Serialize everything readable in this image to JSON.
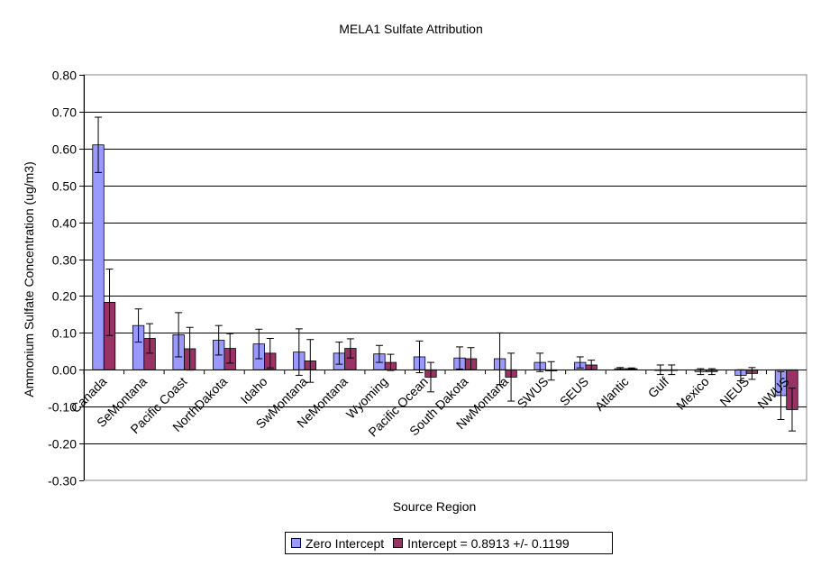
{
  "chart_data": {
    "type": "bar",
    "title": "MELA1 Sulfate Attribution",
    "xlabel": "Source Region",
    "ylabel": "Ammonium Sulfate Concentration (ug/m3)",
    "ylim": [
      -0.3,
      0.8
    ],
    "ytick_step": 0.1,
    "yticks": [
      "0.80",
      "0.70",
      "0.60",
      "0.50",
      "0.40",
      "0.30",
      "0.20",
      "0.10",
      "0.00",
      "-0.10",
      "-0.20",
      "-0.30"
    ],
    "grid": true,
    "legend_position": "bottom",
    "categories": [
      "Canada",
      "SeMontana",
      "Pacific Coast",
      "NorthDakota",
      "Idaho",
      "SwMontana",
      "NeMontana",
      "Wyoming",
      "Pacific Ocean",
      "South Dakota",
      "NwMontana",
      "SWUS",
      "SEUS",
      "Atlantic",
      "Gulf",
      "Mexico",
      "NEUS",
      "NWUS"
    ],
    "series": [
      {
        "name": "Zero Intercept",
        "color": "#9999ff",
        "values": [
          0.61,
          0.12,
          0.095,
          0.08,
          0.07,
          0.048,
          0.045,
          0.043,
          0.035,
          0.032,
          0.03,
          0.02,
          0.02,
          0.003,
          0.0,
          -0.005,
          -0.015,
          -0.07
        ],
        "errors": [
          0.075,
          0.045,
          0.06,
          0.04,
          0.04,
          0.063,
          0.03,
          0.023,
          0.043,
          0.03,
          0.07,
          0.025,
          0.015,
          0.003,
          0.013,
          0.008,
          0.015,
          0.065
        ]
      },
      {
        "name": "Intercept = 0.8913 +/- 0.1199",
        "color": "#993366",
        "values": [
          0.183,
          0.085,
          0.057,
          0.058,
          0.045,
          0.024,
          0.058,
          0.02,
          -0.02,
          0.03,
          -0.02,
          -0.003,
          0.013,
          0.003,
          0.0,
          -0.005,
          -0.01,
          -0.108
        ],
        "errors": [
          0.09,
          0.04,
          0.058,
          0.04,
          0.04,
          0.058,
          0.026,
          0.022,
          0.04,
          0.03,
          0.065,
          0.025,
          0.013,
          0.002,
          0.013,
          0.008,
          0.016,
          0.058
        ]
      }
    ]
  }
}
